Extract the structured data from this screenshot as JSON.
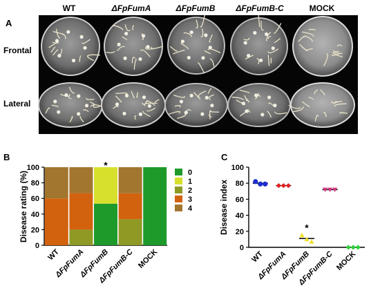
{
  "panel_a": {
    "letter": "A",
    "columns": [
      "WT",
      "ΔFpFumA",
      "ΔFpFumB",
      "ΔFpFumB-C",
      "MOCK"
    ],
    "rows": [
      "Frontal",
      "Lateral"
    ]
  },
  "panel_b": {
    "letter": "B",
    "chart_data": {
      "type": "bar",
      "stacked": true,
      "categories": [
        "WT",
        "ΔFpFumA",
        "ΔFpFumB",
        "ΔFpFumB-C",
        "MOCK"
      ],
      "series": [
        {
          "name": "0",
          "color": "#1e9a2a",
          "values": [
            0,
            0,
            53.3,
            0,
            100
          ]
        },
        {
          "name": "1",
          "color": "#d7e02c",
          "values": [
            0,
            0,
            46.7,
            0,
            0
          ]
        },
        {
          "name": "2",
          "color": "#8e9a24",
          "values": [
            0,
            20,
            0,
            33.3,
            0
          ]
        },
        {
          "name": "3",
          "color": "#d2620e",
          "values": [
            60,
            46.7,
            0,
            33.3,
            0
          ]
        },
        {
          "name": "4",
          "color": "#a3762f",
          "values": [
            40,
            33.3,
            0,
            33.4,
            0
          ]
        }
      ],
      "ylabel": "Disease rating (%)",
      "ylim": [
        0,
        100
      ],
      "yticks": [
        "0",
        "20",
        "40",
        "60",
        "80",
        "100"
      ],
      "annotations": [
        {
          "category": "ΔFpFumB",
          "text": "*"
        }
      ],
      "legend_position": "right"
    }
  },
  "panel_c": {
    "letter": "C",
    "chart_data": {
      "type": "scatter",
      "categories": [
        "WT",
        "ΔFpFumA",
        "ΔFpFumB",
        "ΔFpFumB-C",
        "MOCK"
      ],
      "series": [
        {
          "category": "WT",
          "color": "#1c2fcc",
          "marker": "circle",
          "values": [
            82,
            79,
            79
          ],
          "mean": 80
        },
        {
          "category": "ΔFpFumA",
          "color": "#e02020",
          "marker": "diamond",
          "values": [
            77,
            77,
            77
          ],
          "mean": 77
        },
        {
          "category": "ΔFpFumB",
          "color": "#efe02a",
          "marker": "triangle-up",
          "values": [
            15,
            10,
            7
          ],
          "mean": 11
        },
        {
          "category": "ΔFpFumB-C",
          "color": "#d63a82",
          "marker": "triangle-down",
          "values": [
            72,
            72,
            72
          ],
          "mean": 72
        },
        {
          "category": "MOCK",
          "color": "#2fcf3a",
          "marker": "diamond",
          "values": [
            0,
            0,
            0
          ],
          "mean": 0
        }
      ],
      "ylabel": "Disease index",
      "ylim": [
        0,
        100
      ],
      "yticks": [
        "0",
        "20",
        "40",
        "60",
        "80",
        "100"
      ],
      "annotations": [
        {
          "category": "ΔFpFumB",
          "text": "*"
        }
      ]
    }
  }
}
